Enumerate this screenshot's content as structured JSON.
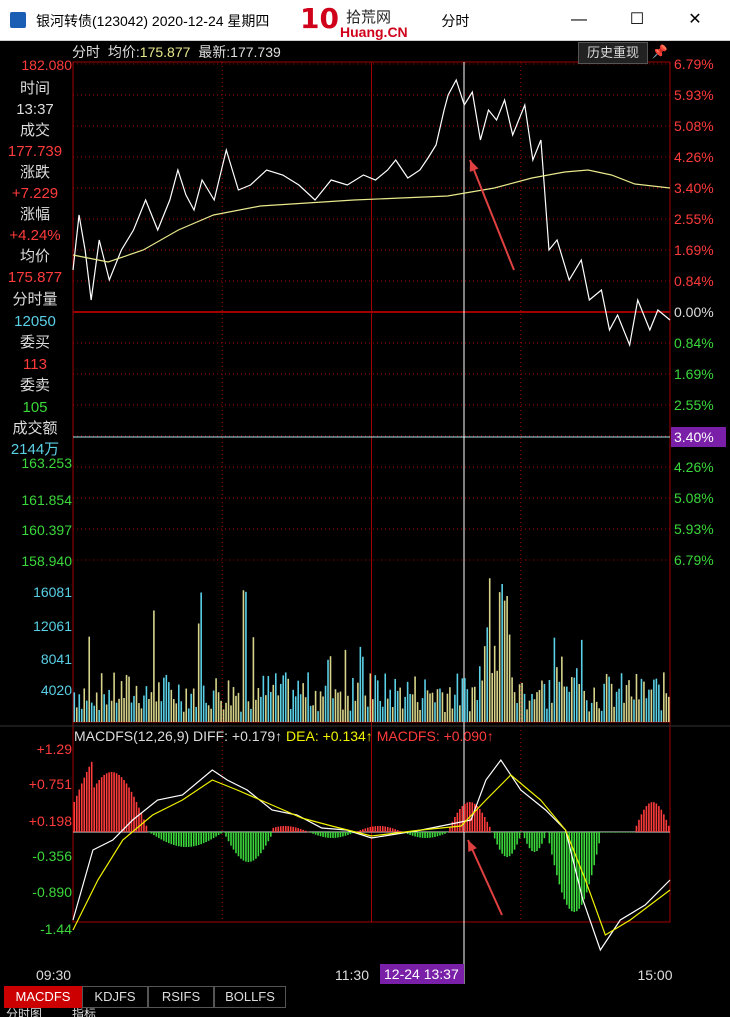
{
  "window": {
    "title": "银河转债(123042) 2020-12-24 星期四 ",
    "title_suffix": "分时",
    "minimize": "—",
    "maximize": "☐",
    "close": "✕"
  },
  "watermark": {
    "logo": "10",
    "zh": "拾荒网",
    "en": "Huang.CN"
  },
  "header": {
    "mode": "分时",
    "avg_label": "均价:",
    "avg_value": "175.877",
    "latest_label": "最新:",
    "latest_value": "177.739",
    "history_button": "历史重现",
    "pin_icon": "pin-icon"
  },
  "info_panel": {
    "time_label": "时间",
    "time_value": "13:37",
    "price_label": "成交",
    "price_value": "177.739",
    "change_label": "涨跌",
    "change_value": "+7.229",
    "pct_label": "涨幅",
    "pct_value": "+4.24%",
    "avg_label": "均价",
    "avg_value": "175.877",
    "vol_label": "分时量",
    "vol_value": "12050",
    "bid_label": "委买",
    "bid_value": "113",
    "ask_label": "委卖",
    "ask_value": "105",
    "amount_label": "成交额",
    "amount_value": "2144万"
  },
  "price_axis": {
    "left_labels": [
      "182.080",
      "163.253",
      "161.854",
      "160.397",
      "158.940"
    ],
    "right_labels": [
      "6.79%",
      "5.93%",
      "5.08%",
      "4.26%",
      "3.40%",
      "2.55%",
      "1.69%",
      "0.84%",
      "0.00%",
      "0.84%",
      "1.69%",
      "2.55%",
      "3.40%",
      "4.26%",
      "5.08%",
      "5.93%",
      "6.79%"
    ],
    "crosshair_label": "3.40%"
  },
  "volume_axis": {
    "labels": [
      "16081",
      "12061",
      "8041",
      "4020"
    ]
  },
  "macd": {
    "title": "MACDFS(12,26,9)",
    "diff_label": "DIFF:",
    "diff_value": "+0.179↑",
    "dea_label": "DEA:",
    "dea_value": "+0.134↑",
    "macdfs_label": "MACDFS:",
    "macdfs_value": "+0.090↑",
    "axis_labels": [
      "+1.29",
      "+0.751",
      "+0.198",
      "-0.356",
      "-0.890",
      "-1.44"
    ]
  },
  "time_axis": {
    "start": "09:30",
    "mid": "11:30",
    "end": "15:00",
    "cursor": "12-24 13:37"
  },
  "tabs": [
    "MACDFS",
    "KDJFS",
    "RSIFS",
    "BOLLFS"
  ],
  "bottom_tabs": [
    "分时图",
    "指标"
  ],
  "colors": {
    "bg": "#000000",
    "up": "#ff3b3b",
    "down": "#3bd83b",
    "price_line": "#ffffff",
    "avg_line": "#e8e88c",
    "cyan": "#5ad0e6",
    "yellow": "#f2f200",
    "grid_red": "#a00000",
    "crosshair": "#ffffff",
    "purple": "#7a1fa8"
  }
}
